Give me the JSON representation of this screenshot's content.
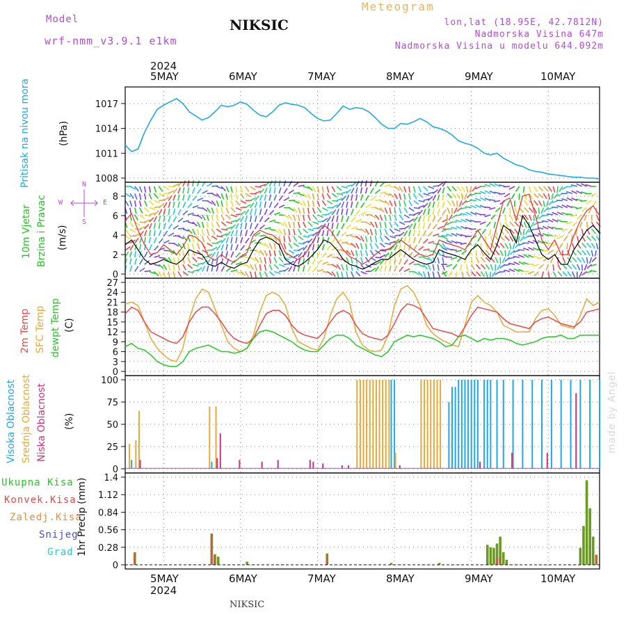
{
  "header": {
    "model_label": "Model",
    "model_name": "wrf-nmm_v3.9.1 e1km",
    "station_title": "NIKSIC",
    "meteogram_label": "Meteogram",
    "coords": "lon,lat (18.95E, 42.7812N)",
    "altitude": "Nadmorska Visina 647m",
    "model_altitude": "Nadmorska Visina u modelu 644.092m",
    "footer_station": "NIKSIC",
    "credit": "made by Angel"
  },
  "dates": {
    "year": "2024",
    "days": [
      "5MAY",
      "6MAY",
      "7MAY",
      "8MAY",
      "9MAY",
      "10MAY"
    ]
  },
  "labels": {
    "pressure_title": "Pritisak na nivou mora",
    "pressure_unit": "(hPa)",
    "wind_title1": "10m Vjetar",
    "wind_title2": "Brzina i Pravac",
    "wind_unit": "(m/s)",
    "wind_rose_n": "N",
    "wind_rose_s": "S",
    "wind_rose_w": "W",
    "wind_rose_e": "E",
    "temp_2m": "2m Temp",
    "temp_sfc": "SFC Temp",
    "temp_dew": "dewpt Temp",
    "temp_unit": "(C)",
    "cloud_high": "Visoka Oblacnost",
    "cloud_mid": "Srednja Oblacnost",
    "cloud_low": "Niska Oblacnost",
    "cloud_unit": "(%)",
    "precip_total": "Ukupna Kisa",
    "precip_conv": "Konvek.Kisa",
    "precip_frozen": "Zaledj.Kisa",
    "precip_snow": "Snijeg",
    "precip_graupel": "Grad",
    "precip_unit": "1hr Precip (mm)"
  },
  "colors": {
    "pressure": "#1ea8e8",
    "wind_speed": "#000000",
    "wind_gust": "#e83030",
    "temp_2m": "#e84848",
    "temp_sfc": "#e8a838",
    "temp_dew": "#22c822",
    "cloud_high": "#1ea8e8",
    "cloud_mid": "#e8a838",
    "cloud_low": "#d0307a",
    "precip_total": "#6a9a22",
    "precip_conv": "#e84848",
    "precip_frozen": "#f08a3a",
    "precip_snow": "#4a4ae8",
    "precip_graupel": "#22c8c8",
    "grid": "#888888"
  },
  "chart_data": [
    {
      "type": "line",
      "name": "pressure",
      "x_unit": "hours since 2024-05-04 12:00 UTC",
      "x_ticks": [
        12,
        36,
        60,
        84,
        108,
        132
      ],
      "ylim": [
        1008,
        1018.5
      ],
      "yticks": [
        1008,
        1011,
        1014,
        1017
      ],
      "x": [
        0,
        2,
        4,
        6,
        8,
        10,
        12,
        14,
        16,
        18,
        20,
        22,
        24,
        26,
        28,
        30,
        32,
        34,
        36,
        38,
        40,
        42,
        44,
        46,
        48,
        50,
        52,
        54,
        56,
        58,
        60,
        62,
        64,
        66,
        68,
        70,
        72,
        74,
        76,
        78,
        80,
        82,
        84,
        86,
        88,
        90,
        92,
        94,
        96,
        98,
        100,
        102,
        104,
        106,
        108,
        110,
        112,
        114,
        116,
        118,
        120,
        122,
        124,
        126,
        128,
        130,
        132,
        134,
        136,
        138,
        140,
        142,
        144,
        146,
        148
      ],
      "y": [
        1012.0,
        1011.2,
        1011.5,
        1013.5,
        1015.0,
        1016.3,
        1016.8,
        1017.2,
        1017.6,
        1017.0,
        1016.0,
        1015.5,
        1015.0,
        1015.3,
        1016.0,
        1016.8,
        1016.6,
        1016.8,
        1017.2,
        1016.9,
        1016.2,
        1015.6,
        1015.4,
        1016.0,
        1016.8,
        1017.1,
        1016.9,
        1016.8,
        1016.5,
        1015.8,
        1015.2,
        1014.9,
        1015.0,
        1015.8,
        1016.7,
        1016.3,
        1016.5,
        1016.4,
        1016.0,
        1015.3,
        1014.5,
        1014.0,
        1014.0,
        1014.6,
        1014.5,
        1014.8,
        1015.2,
        1014.8,
        1014.2,
        1014.0,
        1013.7,
        1013.2,
        1012.5,
        1012.2,
        1012.0,
        1011.6,
        1011.0,
        1010.8,
        1011.0,
        1010.4,
        1010.0,
        1009.6,
        1009.4,
        1009.0,
        1008.8,
        1008.7,
        1008.5,
        1008.4,
        1008.3,
        1008.2,
        1008.1,
        1008.1,
        1008.0,
        1008.0,
        1007.9
      ]
    },
    {
      "type": "line",
      "name": "wind",
      "ylim": [
        0,
        9
      ],
      "yticks": [
        0,
        2,
        4,
        6,
        8
      ],
      "x": [
        0,
        2,
        4,
        6,
        8,
        10,
        12,
        14,
        16,
        18,
        20,
        22,
        24,
        26,
        28,
        30,
        32,
        34,
        36,
        38,
        40,
        42,
        44,
        46,
        48,
        50,
        52,
        54,
        56,
        58,
        60,
        62,
        64,
        66,
        68,
        70,
        72,
        74,
        76,
        78,
        80,
        82,
        84,
        86,
        88,
        90,
        92,
        94,
        96,
        98,
        100,
        102,
        104,
        106,
        108,
        110,
        112,
        114,
        116,
        118,
        120,
        122,
        124,
        126,
        128,
        130,
        132,
        134,
        136,
        138,
        140,
        142,
        144,
        146,
        148
      ],
      "speed": [
        3.0,
        3.5,
        2.5,
        1.5,
        1.0,
        1.2,
        1.5,
        1.2,
        1.0,
        1.5,
        2.5,
        2.2,
        2.0,
        1.0,
        0.8,
        1.2,
        0.8,
        0.6,
        1.0,
        1.2,
        2.5,
        3.5,
        3.8,
        3.5,
        3.0,
        1.5,
        1.0,
        0.8,
        1.2,
        1.8,
        2.5,
        3.5,
        3.2,
        2.5,
        1.5,
        1.0,
        0.8,
        0.5,
        0.8,
        1.2,
        1.5,
        1.5,
        2.0,
        2.5,
        2.0,
        1.5,
        1.2,
        1.0,
        1.2,
        2.5,
        2.2,
        2.0,
        1.8,
        1.5,
        2.5,
        3.0,
        2.2,
        1.5,
        3.0,
        5.0,
        4.5,
        3.2,
        6.0,
        5.0,
        3.5,
        2.0,
        1.5,
        2.0,
        1.0,
        1.0,
        2.5,
        3.5,
        4.5,
        5.0,
        4.2
      ],
      "gust": [
        5.5,
        6.2,
        4.5,
        3.0,
        2.0,
        2.2,
        3.0,
        2.5,
        2.0,
        2.8,
        4.0,
        3.8,
        3.2,
        1.8,
        1.4,
        2.0,
        1.5,
        1.2,
        1.8,
        2.2,
        4.0,
        4.5,
        4.2,
        4.0,
        3.5,
        2.2,
        1.8,
        1.5,
        2.0,
        3.0,
        4.2,
        5.0,
        4.5,
        3.5,
        2.5,
        1.8,
        1.5,
        1.0,
        1.4,
        2.0,
        2.5,
        2.5,
        3.0,
        3.5,
        3.0,
        2.5,
        2.0,
        1.8,
        2.0,
        3.5,
        3.2,
        3.0,
        2.8,
        2.5,
        3.5,
        4.5,
        3.5,
        2.5,
        5.0,
        7.5,
        7.8,
        5.5,
        8.0,
        8.2,
        6.0,
        3.5,
        2.5,
        3.5,
        2.0,
        2.0,
        4.0,
        5.5,
        6.5,
        7.0,
        6.0
      ]
    },
    {
      "type": "line",
      "name": "temperature",
      "ylim": [
        0,
        27
      ],
      "yticks": [
        0,
        3,
        6,
        9,
        12,
        15,
        18,
        21,
        24,
        27
      ],
      "x": [
        0,
        2,
        4,
        6,
        8,
        10,
        12,
        14,
        16,
        18,
        20,
        22,
        24,
        26,
        28,
        30,
        32,
        34,
        36,
        38,
        40,
        42,
        44,
        46,
        48,
        50,
        52,
        54,
        56,
        58,
        60,
        62,
        64,
        66,
        68,
        70,
        72,
        74,
        76,
        78,
        80,
        82,
        84,
        86,
        88,
        90,
        92,
        94,
        96,
        98,
        100,
        102,
        104,
        106,
        108,
        110,
        112,
        114,
        116,
        118,
        120,
        122,
        124,
        126,
        128,
        130,
        132,
        134,
        136,
        138,
        140,
        142,
        144,
        146,
        148
      ],
      "t2m": [
        17.5,
        19.5,
        18.5,
        15.0,
        12.0,
        11.0,
        10.0,
        9.0,
        8.5,
        10.5,
        15.0,
        18.0,
        19.5,
        19.5,
        17.5,
        15.0,
        12.0,
        10.0,
        9.0,
        8.5,
        10.0,
        14.0,
        17.5,
        18.5,
        18.5,
        17.0,
        14.0,
        12.0,
        11.0,
        10.5,
        10.0,
        12.0,
        15.0,
        17.5,
        18.5,
        17.5,
        14.0,
        11.5,
        10.5,
        10.0,
        9.5,
        11.0,
        14.5,
        18.5,
        20.5,
        20.0,
        19.0,
        16.0,
        13.0,
        12.5,
        12.0,
        11.5,
        10.5,
        13.5,
        17.0,
        19.5,
        19.0,
        18.5,
        18.0,
        16.0,
        14.5,
        14.0,
        13.5,
        13.0,
        15.0,
        16.0,
        16.5,
        15.5,
        14.5,
        14.0,
        13.5,
        15.0,
        18.0,
        18.5,
        19.0
      ],
      "tsfc": [
        20.5,
        21.0,
        20.0,
        15.0,
        10.0,
        7.0,
        5.0,
        3.5,
        3.0,
        7.0,
        16.0,
        22.0,
        25.0,
        24.0,
        19.0,
        14.0,
        9.0,
        7.0,
        6.0,
        7.0,
        11.0,
        18.0,
        23.0,
        24.0,
        23.0,
        20.0,
        13.0,
        9.0,
        8.0,
        7.0,
        6.5,
        10.0,
        17.0,
        22.0,
        24.0,
        21.0,
        12.0,
        8.0,
        6.5,
        6.0,
        6.5,
        11.0,
        20.0,
        25.0,
        26.0,
        24.0,
        20.0,
        14.0,
        11.5,
        10.0,
        9.0,
        8.0,
        7.5,
        14.0,
        21.0,
        23.0,
        21.0,
        20.0,
        18.0,
        14.0,
        13.0,
        12.0,
        12.0,
        12.0,
        16.0,
        18.5,
        19.0,
        17.0,
        14.0,
        13.5,
        13.0,
        17.0,
        22.0,
        20.0,
        21.0
      ],
      "tdew": [
        7.5,
        8.5,
        7.0,
        6.5,
        5.0,
        3.0,
        2.0,
        1.5,
        1.5,
        3.0,
        6.0,
        7.0,
        7.5,
        8.0,
        7.0,
        6.0,
        6.0,
        5.5,
        6.0,
        7.0,
        10.0,
        12.0,
        12.5,
        12.0,
        11.0,
        10.0,
        9.0,
        7.5,
        6.5,
        6.0,
        6.0,
        8.0,
        10.0,
        11.0,
        11.0,
        10.0,
        8.0,
        7.0,
        6.0,
        5.0,
        4.5,
        6.0,
        9.0,
        10.0,
        11.0,
        10.5,
        11.0,
        10.5,
        10.0,
        9.0,
        7.5,
        8.0,
        10.5,
        11.0,
        10.0,
        9.0,
        10.0,
        9.5,
        10.0,
        10.0,
        9.5,
        8.5,
        8.0,
        8.5,
        9.0,
        10.0,
        10.5,
        10.5,
        11.0,
        10.0,
        10.0,
        11.0,
        11.0,
        11.0,
        11.0
      ]
    },
    {
      "type": "bar",
      "name": "cloud_cover",
      "ylim": [
        0,
        100
      ],
      "yticks": [
        0,
        25,
        50,
        75,
        100
      ],
      "mid": [
        [
          1,
          28
        ],
        [
          3,
          32
        ],
        [
          4,
          65
        ],
        [
          26,
          70
        ],
        [
          28,
          70
        ],
        [
          72,
          100
        ],
        [
          73,
          100
        ],
        [
          74,
          100
        ],
        [
          75,
          100
        ],
        [
          76,
          100
        ],
        [
          77,
          100
        ],
        [
          78,
          100
        ],
        [
          79,
          100
        ],
        [
          80,
          100
        ],
        [
          81,
          100
        ],
        [
          82,
          100
        ],
        [
          84,
          18
        ],
        [
          92,
          100
        ],
        [
          93,
          100
        ],
        [
          94,
          100
        ],
        [
          95,
          100
        ],
        [
          96,
          100
        ],
        [
          97,
          100
        ],
        [
          98,
          100
        ]
      ],
      "high": [
        [
          2,
          10
        ],
        [
          27,
          8
        ],
        [
          83,
          100
        ],
        [
          84,
          100
        ],
        [
          101,
          75
        ],
        [
          102,
          92
        ],
        [
          103,
          92
        ],
        [
          104,
          100
        ],
        [
          105,
          100
        ],
        [
          106,
          100
        ],
        [
          107,
          100
        ],
        [
          108,
          100
        ],
        [
          109,
          100
        ],
        [
          110,
          100
        ],
        [
          112,
          100
        ],
        [
          113,
          100
        ],
        [
          114,
          100
        ],
        [
          116,
          100
        ],
        [
          118,
          100
        ],
        [
          121,
          100
        ],
        [
          124,
          100
        ],
        [
          127,
          100
        ],
        [
          130,
          100
        ],
        [
          133,
          100
        ],
        [
          136,
          100
        ],
        [
          139,
          100
        ],
        [
          142,
          100
        ],
        [
          145,
          100
        ],
        [
          148,
          100
        ]
      ],
      "low": [
        [
          5,
          10
        ],
        [
          30,
          40
        ],
        [
          29,
          12
        ],
        [
          36,
          10
        ],
        [
          43,
          8
        ],
        [
          48,
          10
        ],
        [
          58,
          10
        ],
        [
          59,
          8
        ],
        [
          62,
          6
        ],
        [
          68,
          4
        ],
        [
          70,
          4
        ],
        [
          86,
          4
        ],
        [
          111,
          8
        ],
        [
          121,
          18
        ],
        [
          132,
          18
        ],
        [
          141,
          85
        ]
      ]
    },
    {
      "type": "bar",
      "name": "precip_1hr",
      "ylim": [
        0,
        1.4
      ],
      "yticks": [
        0,
        0.28,
        0.56,
        0.84,
        1.12,
        1.4
      ],
      "total": [
        [
          3,
          0.2
        ],
        [
          27,
          0.5
        ],
        [
          28,
          0.17
        ],
        [
          29,
          0.13
        ],
        [
          38,
          0.05
        ],
        [
          63,
          0.18
        ],
        [
          83,
          0.03
        ],
        [
          98,
          0.03
        ],
        [
          113,
          0.32
        ],
        [
          114,
          0.28
        ],
        [
          115,
          0.27
        ],
        [
          116,
          0.34
        ],
        [
          117,
          0.45
        ],
        [
          118,
          0.2
        ],
        [
          119,
          0.08
        ],
        [
          142,
          0.27
        ],
        [
          143,
          0.62
        ],
        [
          144,
          1.35
        ],
        [
          145,
          0.9
        ],
        [
          146,
          0.45
        ],
        [
          147,
          0.16
        ]
      ],
      "conv": [
        [
          3,
          0.18
        ],
        [
          27,
          0.48
        ],
        [
          28,
          0.15
        ],
        [
          63,
          0.15
        ],
        [
          116,
          0.1
        ],
        [
          117,
          0.12
        ],
        [
          147,
          0.16
        ]
      ]
    }
  ]
}
